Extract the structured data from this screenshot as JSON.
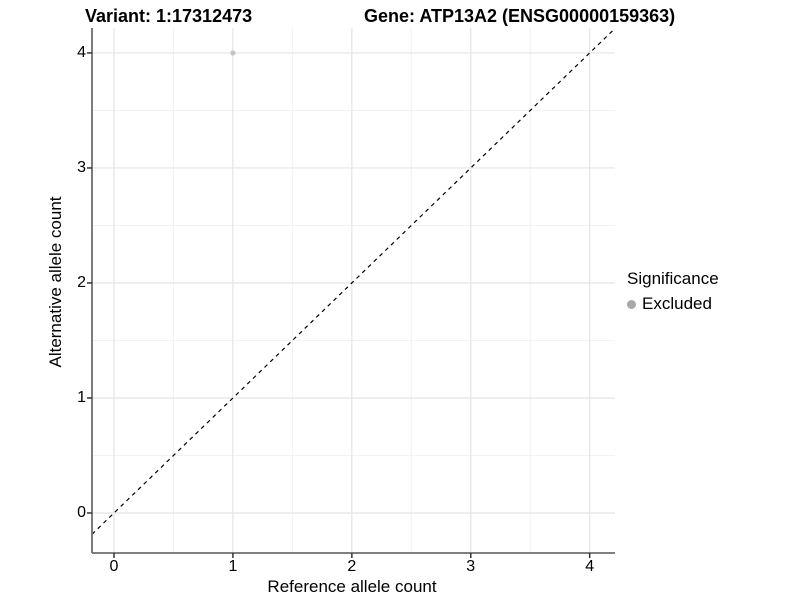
{
  "chart_data": {
    "type": "scatter",
    "titles": {
      "left": "Variant: 1:17312473",
      "right": "Gene: ATP13A2 (ENSG00000159363)"
    },
    "xlabel": "Reference allele count",
    "ylabel": "Alternative allele count",
    "xlim": [
      -0.185,
      4.213
    ],
    "ylim": [
      -0.348,
      4.217
    ],
    "xticks": [
      0,
      1,
      2,
      3,
      4
    ],
    "yticks": [
      0,
      1,
      2,
      3,
      4
    ],
    "xticks_minor": [
      0.5,
      1.5,
      2.5,
      3.5
    ],
    "yticks_minor": [
      0.5,
      1.5,
      2.5,
      3.5
    ],
    "grid": "major+minor",
    "points": [
      {
        "x": 1,
        "y": 4,
        "series": "Excluded"
      }
    ],
    "reference_line": {
      "style": "dashed",
      "slope": 1,
      "intercept": 0,
      "color": "#000000"
    },
    "legend": {
      "title": "Significance",
      "position": "right",
      "items": [
        {
          "label": "Excluded",
          "color": "#a8a8a8"
        }
      ]
    },
    "series_colors": {
      "Excluded": "#c3c3c3"
    },
    "point_radius": 2.6,
    "colors": {
      "background": "#ffffff",
      "grid_major": "#e4e4e4",
      "grid_minor": "#f2f2f2",
      "axis_line": "#6e6e6e",
      "tick_mark": "#333333",
      "text": "#000000"
    }
  }
}
